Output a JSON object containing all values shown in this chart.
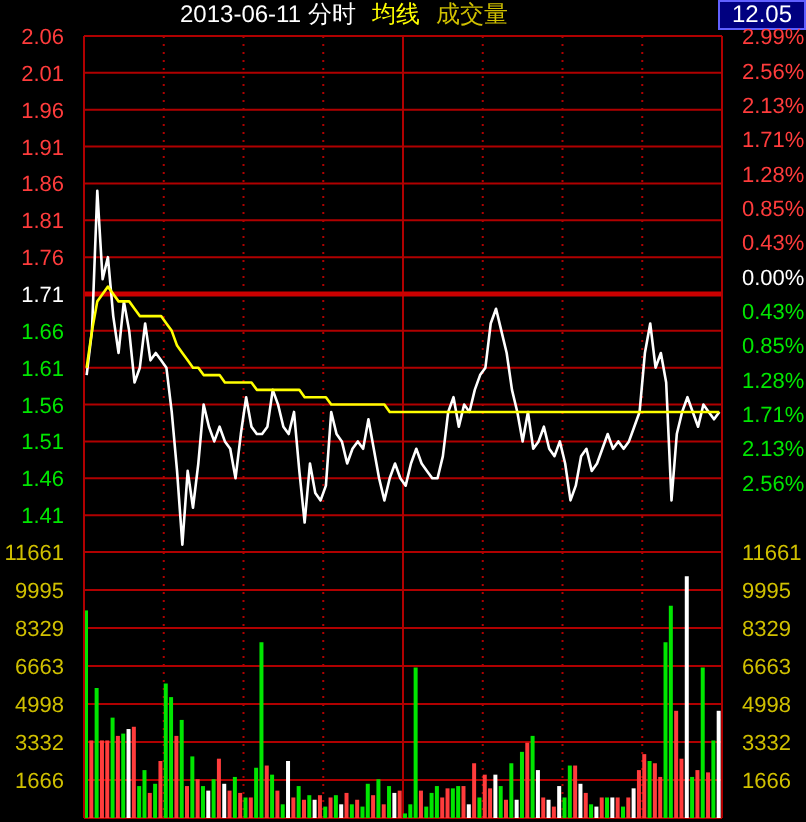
{
  "chart_data": [
    {
      "type": "line",
      "title": "2013-06-11 分时",
      "annotations": [
        "成交量",
        "12.05"
      ],
      "categories": [
        null,
        null,
        null,
        null,
        null,
        null,
        null,
        null,
        null,
        null,
        null,
        null,
        null,
        null,
        null,
        null,
        null,
        null,
        null,
        null,
        null,
        null,
        null,
        null,
        null,
        null,
        null,
        null,
        null,
        null,
        null,
        null,
        null,
        null,
        null,
        null,
        null,
        null,
        null,
        null,
        null,
        null,
        null,
        null,
        null,
        null,
        null,
        null,
        null,
        null,
        null,
        null,
        null,
        null,
        null,
        null,
        null,
        null,
        null,
        null,
        null,
        null,
        null,
        null,
        null,
        null,
        null,
        null,
        null,
        null,
        null,
        null,
        null,
        null,
        null,
        null,
        null,
        null,
        null,
        null,
        null,
        null,
        null,
        null,
        null,
        null,
        null,
        null,
        null,
        null,
        null,
        null,
        null,
        null,
        null,
        null,
        null,
        null,
        null,
        null,
        null,
        null,
        null,
        null,
        null,
        null,
        null,
        null,
        null,
        null,
        null,
        null,
        null,
        null,
        null,
        null,
        null,
        null,
        null,
        null
      ],
      "series": [
        {
          "color": "#ffffff",
          "values": [
            1.6,
            1.66,
            1.85,
            1.73,
            1.76,
            1.68,
            1.63,
            1.7,
            1.66,
            1.59,
            1.61,
            1.67,
            1.62,
            1.63,
            1.62,
            1.61,
            1.55,
            1.47,
            1.37,
            1.47,
            1.42,
            1.48,
            1.56,
            1.53,
            1.51,
            1.53,
            1.51,
            1.5,
            1.46,
            1.52,
            1.57,
            1.53,
            1.52,
            1.52,
            1.53,
            1.58,
            1.56,
            1.53,
            1.52,
            1.55,
            1.47,
            1.4,
            1.48,
            1.44,
            1.43,
            1.45,
            1.55,
            1.52,
            1.51,
            1.48,
            1.5,
            1.51,
            1.5,
            1.54,
            1.5,
            1.46,
            1.43,
            1.46,
            1.48,
            1.46,
            1.45,
            1.48,
            1.5,
            1.48,
            1.47,
            1.46,
            1.46,
            1.49,
            1.55,
            1.57,
            1.53,
            1.56,
            1.55,
            1.58,
            1.6,
            1.61,
            1.67,
            1.69,
            1.66,
            1.63,
            1.58,
            1.55,
            1.51,
            1.55,
            1.5,
            1.51,
            1.53,
            1.5,
            1.49,
            1.51,
            1.48,
            1.43,
            1.45,
            1.49,
            1.5,
            1.47,
            1.48,
            1.5,
            1.52,
            1.5,
            1.51,
            1.5,
            1.51,
            1.53,
            1.55,
            1.63,
            1.67,
            1.61,
            1.63,
            1.59,
            1.43,
            1.52,
            1.55,
            1.57,
            1.55,
            1.53,
            1.56,
            1.55,
            1.54,
            1.55
          ]
        },
        {
          "name": "均线",
          "color": "#ffff00",
          "values": [
            1.61,
            1.66,
            1.7,
            1.71,
            1.72,
            1.71,
            1.7,
            1.7,
            1.7,
            1.69,
            1.68,
            1.68,
            1.68,
            1.68,
            1.68,
            1.67,
            1.66,
            1.64,
            1.63,
            1.62,
            1.61,
            1.61,
            1.6,
            1.6,
            1.6,
            1.6,
            1.59,
            1.59,
            1.59,
            1.59,
            1.59,
            1.59,
            1.58,
            1.58,
            1.58,
            1.58,
            1.58,
            1.58,
            1.58,
            1.58,
            1.58,
            1.57,
            1.57,
            1.57,
            1.57,
            1.57,
            1.56,
            1.56,
            1.56,
            1.56,
            1.56,
            1.56,
            1.56,
            1.56,
            1.56,
            1.56,
            1.56,
            1.55,
            1.55,
            1.55,
            1.55,
            1.55,
            1.55,
            1.55,
            1.55,
            1.55,
            1.55,
            1.55,
            1.55,
            1.55,
            1.55,
            1.55,
            1.55,
            1.55,
            1.55,
            1.55,
            1.55,
            1.55,
            1.55,
            1.55,
            1.55,
            1.55,
            1.55,
            1.55,
            1.55,
            1.55,
            1.55,
            1.55,
            1.55,
            1.55,
            1.55,
            1.55,
            1.55,
            1.55,
            1.55,
            1.55,
            1.55,
            1.55,
            1.55,
            1.55,
            1.55,
            1.55,
            1.55,
            1.55,
            1.55,
            1.55,
            1.55,
            1.55,
            1.55,
            1.55,
            1.55,
            1.55,
            1.55,
            1.55,
            1.55,
            1.55,
            1.55,
            1.55,
            1.55,
            1.55
          ]
        }
      ],
      "ylim": [
        1.36,
        2.06
      ],
      "yticks": [
        1.41,
        1.46,
        1.51,
        1.56,
        1.61,
        1.66,
        1.71,
        1.76,
        1.81,
        1.86,
        1.91,
        1.96,
        2.01,
        2.06
      ],
      "y2lim": [
        -3.42,
        2.99
      ],
      "y2ticks": [
        {
          "value": -2.56,
          "label": "2.56%"
        },
        {
          "value": -2.13,
          "label": "2.13%"
        },
        {
          "value": -1.71,
          "label": "1.71%"
        },
        {
          "value": -1.28,
          "label": "1.28%"
        },
        {
          "value": -0.85,
          "label": "0.85%"
        },
        {
          "value": -0.43,
          "label": "0.43%"
        },
        {
          "value": 0,
          "label": "0.00%"
        },
        {
          "value": 0.43,
          "label": "0.43%"
        },
        {
          "value": 0.85,
          "label": "0.85%"
        },
        {
          "value": 1.28,
          "label": "1.28%"
        },
        {
          "value": 1.71,
          "label": "1.71%"
        },
        {
          "value": 2.13,
          "label": "2.13%"
        },
        {
          "value": 2.56,
          "label": "2.56%"
        },
        {
          "value": 2.99,
          "label": "2.99%"
        }
      ],
      "ref_lines": [
        {
          "axis": "y",
          "value": 1.71,
          "color": "#cc0000"
        }
      ],
      "grid": true,
      "legend": "top",
      "tick_labels": "y"
    },
    {
      "type": "bar",
      "categories": [
        null,
        null,
        null,
        null,
        null,
        null,
        null,
        null,
        null,
        null,
        null,
        null,
        null,
        null,
        null,
        null,
        null,
        null,
        null,
        null,
        null,
        null,
        null,
        null,
        null,
        null,
        null,
        null,
        null,
        null,
        null,
        null,
        null,
        null,
        null,
        null,
        null,
        null,
        null,
        null,
        null,
        null,
        null,
        null,
        null,
        null,
        null,
        null,
        null,
        null,
        null,
        null,
        null,
        null,
        null,
        null,
        null,
        null,
        null,
        null,
        null,
        null,
        null,
        null,
        null,
        null,
        null,
        null,
        null,
        null,
        null,
        null,
        null,
        null,
        null,
        null,
        null,
        null,
        null,
        null,
        null,
        null,
        null,
        null,
        null,
        null,
        null,
        null,
        null,
        null,
        null,
        null,
        null,
        null,
        null,
        null,
        null,
        null,
        null,
        null,
        null,
        null,
        null,
        null,
        null,
        null,
        null,
        null,
        null,
        null,
        null,
        null,
        null,
        null,
        null,
        null,
        null,
        null,
        null,
        null
      ],
      "values": [
        9100,
        3400,
        5700,
        3400,
        3400,
        4400,
        3600,
        3700,
        3900,
        4000,
        1400,
        2100,
        1100,
        1500,
        2500,
        5900,
        5300,
        3600,
        4300,
        1400,
        2700,
        1700,
        1400,
        1200,
        1700,
        2600,
        1500,
        1200,
        1800,
        1100,
        900,
        900,
        2200,
        7700,
        2300,
        1900,
        1200,
        600,
        2500,
        900,
        1400,
        800,
        1000,
        800,
        1000,
        500,
        900,
        1000,
        600,
        1100,
        600,
        800,
        500,
        1500,
        1000,
        1700,
        600,
        1400,
        1100,
        1200,
        200,
        600,
        6600,
        1200,
        500,
        1100,
        1400,
        900,
        1300,
        1300,
        1400,
        1400,
        600,
        2400,
        900,
        1900,
        1300,
        1900,
        1400,
        800,
        2400,
        800,
        2900,
        3300,
        3600,
        2100,
        900,
        800,
        500,
        1400,
        900,
        2300,
        2300,
        1500,
        1100,
        600,
        500,
        900,
        900,
        900,
        900,
        500,
        900,
        1300,
        2100,
        2800,
        2500,
        2400,
        1800,
        7700,
        9300,
        4700,
        2600,
        10600,
        1800,
        2100,
        6600,
        2000,
        3400,
        4700
      ],
      "colors": [
        "#00e600",
        "#ff3c3c",
        "#00e600",
        "#ff3c3c",
        "#ff3c3c",
        "#00e600",
        "#ff3c3c",
        "#00e600",
        "#ffffff",
        "#ff3c3c",
        "#00e600",
        "#00e600",
        "#ff3c3c",
        "#00e600",
        "#ff3c3c",
        "#00e600",
        "#00e600",
        "#ff3c3c",
        "#00e600",
        "#ff3c3c",
        "#00e600",
        "#ff3c3c",
        "#00e600",
        "#ffffff",
        "#00e600",
        "#ff3c3c",
        "#ffffff",
        "#ff3c3c",
        "#00e600",
        "#ff3c3c",
        "#00e600",
        "#ff3c3c",
        "#00e600",
        "#00e600",
        "#ff3c3c",
        "#00e600",
        "#ff3c3c",
        "#00e600",
        "#ffffff",
        "#ff3c3c",
        "#00e600",
        "#ff3c3c",
        "#00e600",
        "#ffffff",
        "#ff3c3c",
        "#00e600",
        "#ff3c3c",
        "#00e600",
        "#ffffff",
        "#ff3c3c",
        "#00e600",
        "#ff3c3c",
        "#00e600",
        "#00e600",
        "#ff3c3c",
        "#00e600",
        "#ff3c3c",
        "#00e600",
        "#ffffff",
        "#ff3c3c",
        "#00e600",
        "#00e600",
        "#00e600",
        "#ff3c3c",
        "#00e600",
        "#00e600",
        "#00e600",
        "#ff3c3c",
        "#ff3c3c",
        "#00e600",
        "#00e600",
        "#ff3c3c",
        "#ffffff",
        "#ff3c3c",
        "#00e600",
        "#ff3c3c",
        "#ff3c3c",
        "#ffffff",
        "#00e600",
        "#ff3c3c",
        "#00e600",
        "#ffffff",
        "#00e600",
        "#ff3c3c",
        "#00e600",
        "#ffffff",
        "#ff3c3c",
        "#ffffff",
        "#ff3c3c",
        "#ffffff",
        "#00e600",
        "#00e600",
        "#ff3c3c",
        "#ffffff",
        "#ff3c3c",
        "#00e600",
        "#ffffff",
        "#ff3c3c",
        "#00e600",
        "#ffffff",
        "#ff3c3c",
        "#00e600",
        "#ff3c3c",
        "#ffffff",
        "#ff3c3c",
        "#ff3c3c",
        "#00e600",
        "#ff3c3c",
        "#ff3c3c",
        "#00e600",
        "#00e600",
        "#ff3c3c",
        "#ff3c3c",
        "#ffffff",
        "#00e600",
        "#ff3c3c",
        "#00e600",
        "#ff3c3c",
        "#00e600",
        "#ffffff"
      ],
      "ylim": [
        0,
        11661
      ],
      "yticks": [
        1666,
        3332,
        4998,
        6663,
        8329,
        9995,
        11661
      ],
      "y2lim": [
        0,
        11661
      ],
      "y2ticks": [
        1666,
        3332,
        4998,
        6663,
        8329,
        9995,
        11661
      ],
      "grid": true,
      "tick_labels": "y"
    }
  ]
}
